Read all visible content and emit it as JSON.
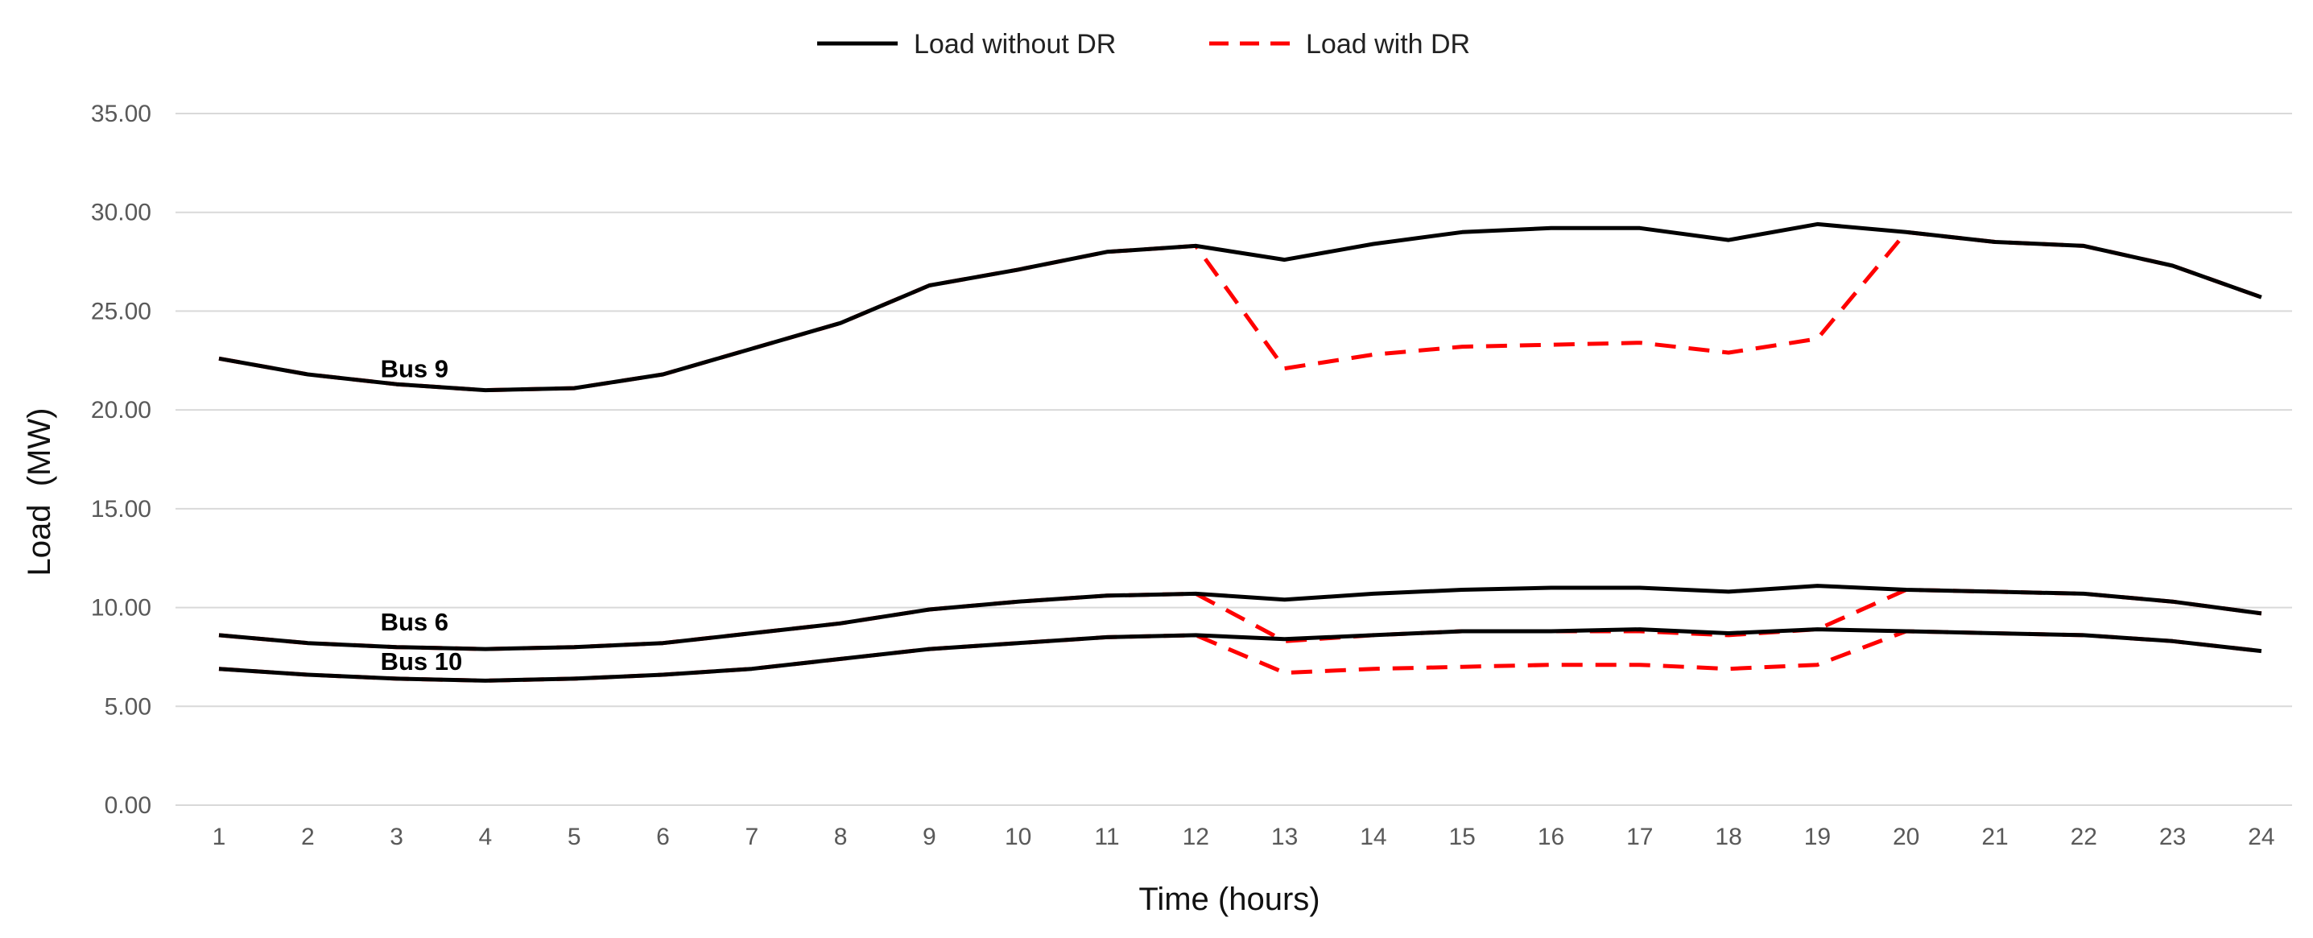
{
  "chart_data": {
    "type": "line",
    "title": "",
    "xlabel": "Time (hours)",
    "ylabel": "Load  (MW)",
    "ylim": [
      0,
      35
    ],
    "yticks": [
      "0.00",
      "5.00",
      "10.00",
      "15.00",
      "20.00",
      "25.00",
      "30.00",
      "35.00"
    ],
    "grid": true,
    "legend_position": "top-center",
    "legend": [
      {
        "label": "Load without DR",
        "color": "#000000",
        "style": "solid"
      },
      {
        "label": "Load with DR",
        "color": "#ff0000",
        "style": "dashed"
      }
    ],
    "x": [
      1,
      2,
      3,
      4,
      5,
      6,
      7,
      8,
      9,
      10,
      11,
      12,
      13,
      14,
      15,
      16,
      17,
      18,
      19,
      20,
      21,
      22,
      23,
      24
    ],
    "series": [
      {
        "name": "Bus 9 - Load without DR",
        "group": "Bus 9",
        "color": "#000000",
        "style": "solid",
        "values": [
          22.6,
          21.8,
          21.3,
          21.0,
          21.1,
          21.8,
          23.1,
          24.4,
          26.3,
          27.1,
          28.0,
          28.3,
          27.6,
          28.4,
          29.0,
          29.2,
          29.2,
          28.6,
          29.4,
          29.0,
          28.5,
          28.3,
          27.3,
          25.7
        ]
      },
      {
        "name": "Bus 9 - Load with DR",
        "group": "Bus 9",
        "color": "#ff0000",
        "style": "dashed",
        "values": [
          22.6,
          21.8,
          21.3,
          21.0,
          21.1,
          21.8,
          23.1,
          24.4,
          26.3,
          27.1,
          28.0,
          28.3,
          22.1,
          22.8,
          23.2,
          23.3,
          23.4,
          22.9,
          23.6,
          29.0,
          28.5,
          28.3,
          27.3,
          25.7
        ]
      },
      {
        "name": "Bus 6 - Load without DR",
        "group": "Bus 6",
        "color": "#000000",
        "style": "solid",
        "values": [
          8.6,
          8.2,
          8.0,
          7.9,
          8.0,
          8.2,
          8.7,
          9.2,
          9.9,
          10.3,
          10.6,
          10.7,
          10.4,
          10.7,
          10.9,
          11.0,
          11.0,
          10.8,
          11.1,
          10.9,
          10.8,
          10.7,
          10.3,
          9.7
        ]
      },
      {
        "name": "Bus 6 - Load with DR",
        "group": "Bus 6",
        "color": "#ff0000",
        "style": "dashed",
        "values": [
          8.6,
          8.2,
          8.0,
          7.9,
          8.0,
          8.2,
          8.7,
          9.2,
          9.9,
          10.3,
          10.6,
          10.7,
          8.3,
          8.6,
          8.8,
          8.8,
          8.8,
          8.6,
          8.9,
          10.9,
          10.8,
          10.7,
          10.3,
          9.7
        ]
      },
      {
        "name": "Bus 10 - Load without DR",
        "group": "Bus 10",
        "color": "#000000",
        "style": "solid",
        "values": [
          6.9,
          6.6,
          6.4,
          6.3,
          6.4,
          6.6,
          6.9,
          7.4,
          7.9,
          8.2,
          8.5,
          8.6,
          8.4,
          8.6,
          8.8,
          8.8,
          8.9,
          8.7,
          8.9,
          8.8,
          8.7,
          8.6,
          8.3,
          7.8
        ]
      },
      {
        "name": "Bus 10 - Load with DR",
        "group": "Bus 10",
        "color": "#ff0000",
        "style": "dashed",
        "values": [
          6.9,
          6.6,
          6.4,
          6.3,
          6.4,
          6.6,
          6.9,
          7.4,
          7.9,
          8.2,
          8.5,
          8.6,
          6.7,
          6.9,
          7.0,
          7.1,
          7.1,
          6.9,
          7.1,
          8.8,
          8.7,
          8.6,
          8.3,
          7.8
        ]
      }
    ],
    "annotations": [
      {
        "text": "Bus 9",
        "x": 3,
        "y": 22.1
      },
      {
        "text": "Bus 6",
        "x": 3,
        "y": 9.3
      },
      {
        "text": "Bus 10",
        "x": 3,
        "y": 7.3
      }
    ]
  }
}
